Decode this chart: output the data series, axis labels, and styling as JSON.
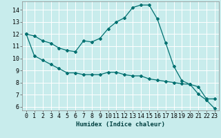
{
  "xlabel": "Humidex (Indice chaleur)",
  "bg_color": "#c8ecec",
  "grid_color": "#ffffff",
  "line_color": "#007070",
  "xlim": [
    -0.5,
    23.5
  ],
  "ylim": [
    5.7,
    14.7
  ],
  "xticks": [
    0,
    1,
    2,
    3,
    4,
    5,
    6,
    7,
    8,
    9,
    10,
    11,
    12,
    13,
    14,
    15,
    16,
    17,
    18,
    19,
    20,
    21,
    22,
    23
  ],
  "yticks": [
    6,
    7,
    8,
    9,
    10,
    11,
    12,
    13,
    14
  ],
  "curve1_x": [
    0,
    1,
    2,
    3,
    4,
    5,
    6,
    7,
    8,
    9,
    10,
    11,
    12,
    13,
    14,
    15,
    16,
    17,
    18,
    19,
    20,
    21,
    22,
    23
  ],
  "curve1_y": [
    12.0,
    11.85,
    11.45,
    11.25,
    10.85,
    10.65,
    10.55,
    11.45,
    11.35,
    11.65,
    12.45,
    13.0,
    13.35,
    14.2,
    14.4,
    14.4,
    13.25,
    11.3,
    9.35,
    8.15,
    7.85,
    7.65,
    6.65,
    6.65
  ],
  "curve2_x": [
    0,
    1,
    2,
    3,
    4,
    5,
    6,
    7,
    8,
    9,
    10,
    11,
    12,
    13,
    14,
    15,
    16,
    17,
    18,
    19,
    20,
    21,
    22,
    23
  ],
  "curve2_y": [
    12.0,
    10.2,
    9.85,
    9.5,
    9.15,
    8.8,
    8.8,
    8.65,
    8.65,
    8.65,
    8.85,
    8.85,
    8.65,
    8.55,
    8.55,
    8.3,
    8.2,
    8.1,
    8.0,
    7.9,
    7.85,
    7.05,
    6.55,
    5.85
  ],
  "tick_fontsize": 6,
  "xlabel_fontsize": 6.5,
  "marker_size": 2.0,
  "linewidth": 0.9
}
